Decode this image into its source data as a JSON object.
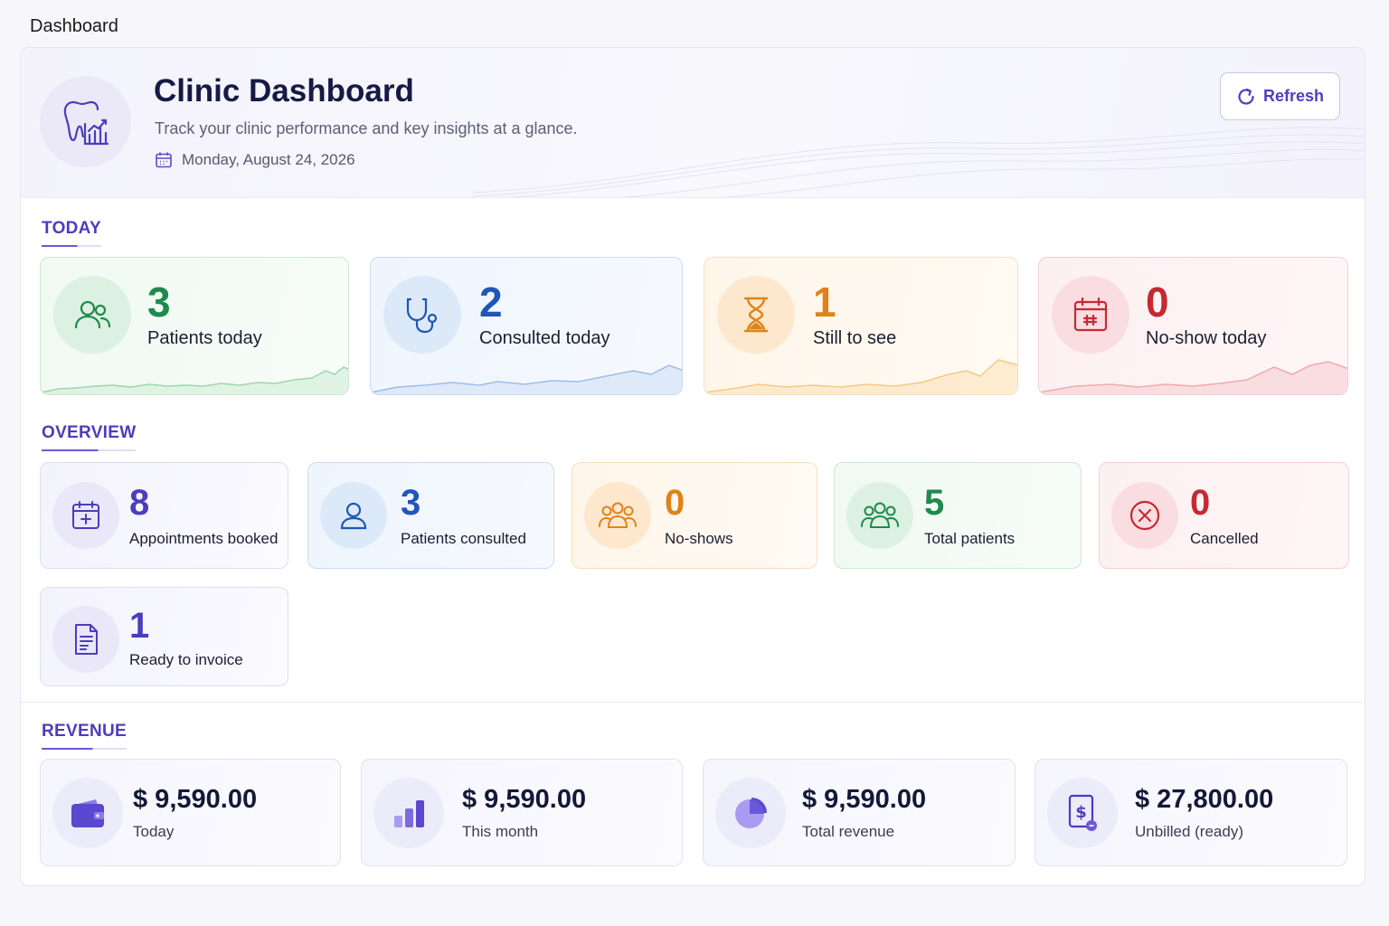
{
  "page_label": "Dashboard",
  "header": {
    "title": "Clinic Dashboard",
    "subtitle": "Track your clinic performance and key insights at a glance.",
    "date": "Monday, August 24, 2026",
    "refresh_label": "Refresh"
  },
  "sections": {
    "today": "TODAY",
    "overview": "OVERVIEW",
    "revenue": "REVENUE"
  },
  "today_cards": [
    {
      "value": "3",
      "label": "Patients today",
      "icon": "patients-icon",
      "color": "#1e8a4c"
    },
    {
      "value": "2",
      "label": "Consulted today",
      "icon": "stethoscope-icon",
      "color": "#1f56b8"
    },
    {
      "value": "1",
      "label": "Still to see",
      "icon": "hourglass-icon",
      "color": "#e0821a"
    },
    {
      "value": "0",
      "label": "No-show today",
      "icon": "calendar-no-show-icon",
      "color": "#c42a33"
    }
  ],
  "overview_cards": [
    {
      "value": "8",
      "label": "Appointments booked",
      "icon": "calendar-plus-icon",
      "color": "#4b3dbd"
    },
    {
      "value": "3",
      "label": "Patients consulted",
      "icon": "user-icon",
      "color": "#1f56b8"
    },
    {
      "value": "0",
      "label": "No-shows",
      "icon": "group-icon",
      "color": "#e0821a"
    },
    {
      "value": "5",
      "label": "Total patients",
      "icon": "group-icon",
      "color": "#1e8a4c"
    },
    {
      "value": "0",
      "label": "Cancelled",
      "icon": "cancel-icon",
      "color": "#c42a33"
    },
    {
      "value": "1",
      "label": "Ready to invoice",
      "icon": "invoice-icon",
      "color": "#4b3dbd"
    }
  ],
  "revenue_cards": [
    {
      "value": "$ 9,590.00",
      "label": "Today",
      "icon": "wallet-icon"
    },
    {
      "value": "$ 9,590.00",
      "label": "This month",
      "icon": "bar-chart-icon"
    },
    {
      "value": "$ 9,590.00",
      "label": "Total revenue",
      "icon": "pie-chart-icon"
    },
    {
      "value": "$ 27,800.00",
      "label": "Unbilled (ready)",
      "icon": "bill-icon"
    }
  ]
}
